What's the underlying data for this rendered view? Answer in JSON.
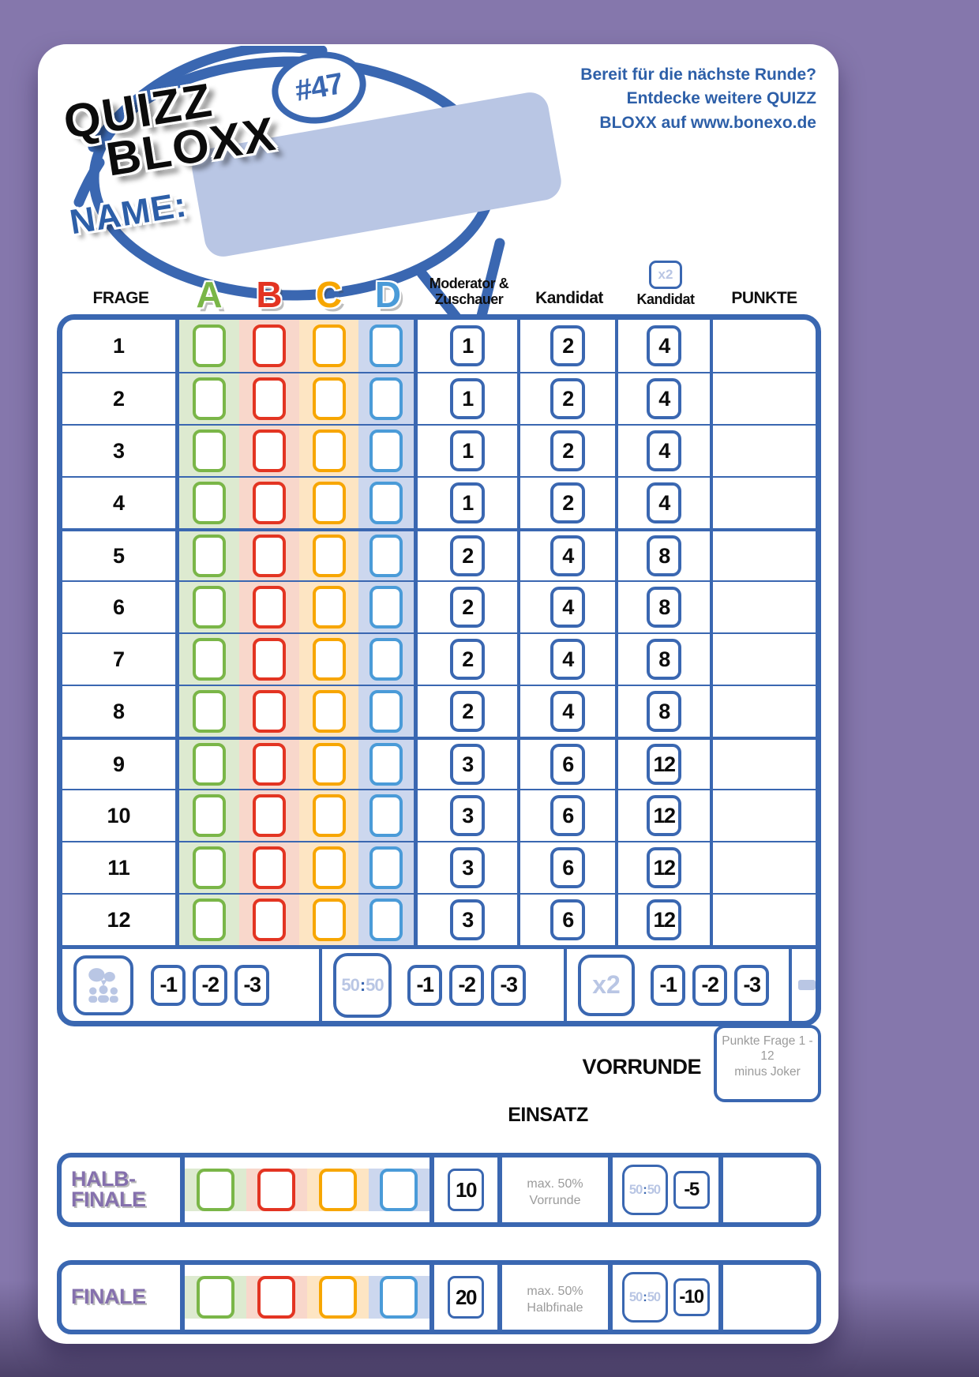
{
  "colors": {
    "primary": "#3a67b1",
    "light_blue": "#b9c6e4",
    "promo_blue": "#2d5fa8",
    "background_purple": "#8577ac",
    "label_purple": "#8570ad",
    "note_gray": "#9b9b9b"
  },
  "logo": {
    "line1": "QUIZZ",
    "line2": "BLOXX",
    "issue": "#47",
    "name_label": "NAME:"
  },
  "promo": {
    "lines": [
      "Bereit für die nächste Runde?",
      "Entdecke weitere QUIZZ",
      "BLOXX auf www.bonexo.de"
    ]
  },
  "table": {
    "headers": {
      "frage": "FRAGE",
      "moderator_line1": "Moderator &",
      "moderator_line2": "Zuschauer",
      "kandidat": "Kandidat",
      "x2_badge": "x2",
      "kandidat_x2": "Kandidat",
      "punkte": "PUNKTE"
    },
    "letters": [
      {
        "label": "A",
        "color": "#7ab648",
        "tint": "#ddead0"
      },
      {
        "label": "B",
        "color": "#e33422",
        "tint": "#f8d7cb"
      },
      {
        "label": "C",
        "color": "#f7a600",
        "tint": "#fde5c3"
      },
      {
        "label": "D",
        "color": "#4a9bd8",
        "tint": "#ccd7ee"
      }
    ],
    "rows": [
      {
        "nr": "1",
        "moderator": "1",
        "kandidat": "2",
        "kandidat_x2": "4"
      },
      {
        "nr": "2",
        "moderator": "1",
        "kandidat": "2",
        "kandidat_x2": "4"
      },
      {
        "nr": "3",
        "moderator": "1",
        "kandidat": "2",
        "kandidat_x2": "4"
      },
      {
        "nr": "4",
        "moderator": "1",
        "kandidat": "2",
        "kandidat_x2": "4"
      },
      {
        "nr": "5",
        "moderator": "2",
        "kandidat": "4",
        "kandidat_x2": "8"
      },
      {
        "nr": "6",
        "moderator": "2",
        "kandidat": "4",
        "kandidat_x2": "8"
      },
      {
        "nr": "7",
        "moderator": "2",
        "kandidat": "4",
        "kandidat_x2": "8"
      },
      {
        "nr": "8",
        "moderator": "2",
        "kandidat": "4",
        "kandidat_x2": "8"
      },
      {
        "nr": "9",
        "moderator": "3",
        "kandidat": "6",
        "kandidat_x2": "12"
      },
      {
        "nr": "10",
        "moderator": "3",
        "kandidat": "6",
        "kandidat_x2": "12"
      },
      {
        "nr": "11",
        "moderator": "3",
        "kandidat": "6",
        "kandidat_x2": "12"
      },
      {
        "nr": "12",
        "moderator": "3",
        "kandidat": "6",
        "kandidat_x2": "12"
      }
    ]
  },
  "joker_row": {
    "audience_icon": "audience-icon",
    "penalties": [
      "-1",
      "-2",
      "-3"
    ],
    "fifty_fifty": "50:50",
    "multiplier": "x2",
    "dash": "–"
  },
  "vorrunde": {
    "label": "VORRUNDE",
    "note_line1": "Punkte Frage 1 - 12",
    "note_line2": "minus Joker"
  },
  "einsatz_label": "EINSATZ",
  "finals": [
    {
      "label_line1": "HALB-",
      "label_line2": "FINALE",
      "stake": "10",
      "note_line1": "max. 50%",
      "note_line2": "Vorrunde",
      "fifty_fifty": "50:50",
      "penalty": "-5"
    },
    {
      "label_line1": "FINALE",
      "label_line2": "",
      "stake": "20",
      "note_line1": "max. 50%",
      "note_line2": "Halbfinale",
      "fifty_fifty": "50:50",
      "penalty": "-10"
    }
  ]
}
